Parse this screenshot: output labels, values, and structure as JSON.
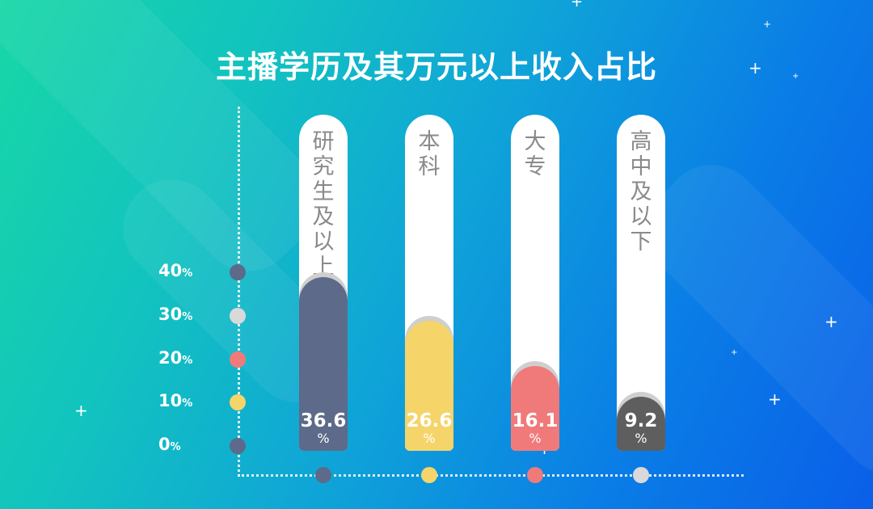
{
  "title": "主播学历及其万元以上收入占比",
  "chart_data": {
    "type": "bar",
    "categories": [
      "研究生及以上",
      "本科",
      "大专",
      "高中及以下"
    ],
    "values": [
      36.6,
      26.6,
      16.1,
      9.2
    ],
    "value_unit": "%",
    "ylim": [
      0,
      40
    ],
    "yticks": [
      {
        "value": "40",
        "unit": "%"
      },
      {
        "value": "30",
        "unit": "%"
      },
      {
        "value": "20",
        "unit": "%"
      },
      {
        "value": "10",
        "unit": "%"
      },
      {
        "value": "0",
        "unit": "%"
      }
    ],
    "bar_colors": [
      "#5d6a8a",
      "#f5d469",
      "#f07a7a",
      "#5e5e5e"
    ],
    "ytick_dot_colors": [
      "#5d6a8a",
      "#d9d9d9",
      "#f07a7a",
      "#f5d469",
      "#5d6a8a"
    ],
    "xdot_colors": [
      "#5d6a8a",
      "#f5d469",
      "#f07a7a",
      "#d9d9d9"
    ],
    "grid": false,
    "legend": "none"
  }
}
